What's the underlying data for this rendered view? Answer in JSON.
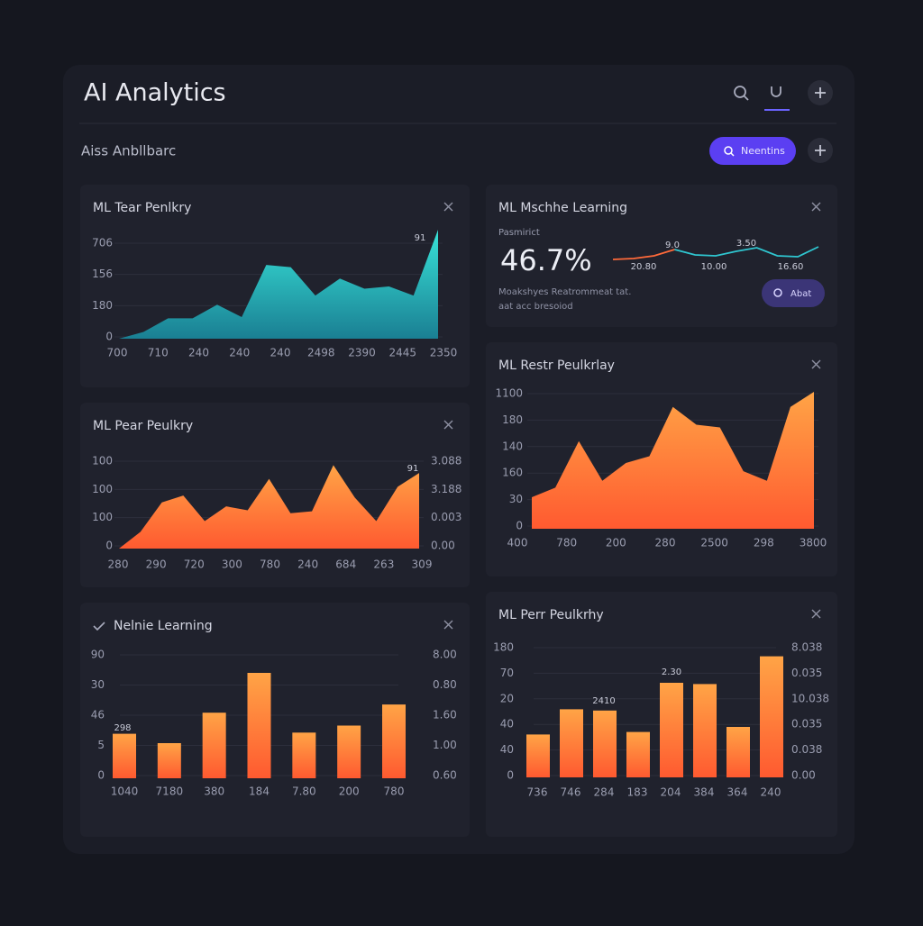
{
  "header": {
    "title": "AI Analytics",
    "subtitle": "Aiss Anbllbarc",
    "button": "Neentins"
  },
  "panels": [
    {
      "title": "ML Tear Penlkry",
      "chart": {
        "type": "area",
        "colors": [
          "#38e3d8",
          "#1a7f93"
        ],
        "ylim": [
          0,
          100
        ],
        "values": [
          0,
          6,
          18,
          18,
          30,
          19,
          65,
          63,
          38,
          53,
          44,
          46,
          38,
          96
        ],
        "ylabels": [
          "706",
          "156",
          "180",
          "0"
        ],
        "xlabels": [
          "700",
          "710",
          "240",
          "240",
          "240",
          "2498",
          "2390",
          "2445",
          "2350"
        ],
        "annotations": [
          "91"
        ]
      }
    },
    {
      "title": "ML Mschhe Learning",
      "label": "Pasmirict",
      "metric": "46.7%",
      "note": [
        "Moakshyes Reatrommeat tat.",
        "aat acc bresoiod"
      ],
      "button": "Abat",
      "chart": {
        "type": "sparkline",
        "ylim": [
          0,
          20
        ],
        "series": [
          {
            "color": "#ff6a3a",
            "values": [
              2,
              3,
              6,
              13,
              null,
              null,
              null,
              null,
              null,
              null,
              null
            ]
          },
          {
            "color": "#2fc6d0",
            "values": [
              null,
              null,
              null,
              13,
              7,
              6,
              11,
              15,
              6,
              5,
              16
            ]
          }
        ],
        "annotations": [
          "9.0",
          "3.50",
          "20.80",
          "10.00",
          "16.60"
        ]
      }
    },
    {
      "title": "ML Pear Peulkry",
      "chart": {
        "type": "area",
        "colors": [
          "#ffa446",
          "#ff5a30"
        ],
        "ylim": [
          0,
          100
        ],
        "values": [
          0,
          17,
          47,
          54,
          28,
          43,
          39,
          71,
          36,
          38,
          85,
          52,
          28,
          63,
          77
        ],
        "ylabels": [
          "100",
          "100",
          "100",
          "0"
        ],
        "y2labels": [
          "3.088",
          "3.188",
          "0.003",
          "0.00"
        ],
        "xlabels": [
          "280",
          "290",
          "720",
          "300",
          "780",
          "240",
          "684",
          "263",
          "309"
        ],
        "annotations": [
          "91"
        ]
      }
    },
    {
      "title": "ML Restr Peulkrlay",
      "chart": {
        "type": "area",
        "colors": [
          "#ffa446",
          "#ff5a30"
        ],
        "ylim": [
          0,
          100
        ],
        "values": [
          23,
          30,
          64,
          35,
          48,
          53,
          89,
          76,
          74,
          42,
          35,
          89,
          100
        ],
        "ylabels": [
          "1100",
          "180",
          "140",
          "160",
          "30",
          "0"
        ],
        "xlabels": [
          "400",
          "780",
          "200",
          "280",
          "2500",
          "298",
          "3800"
        ],
        "annotations": []
      }
    },
    {
      "title": "Nelnie Learning",
      "chart": {
        "type": "bar",
        "colors": [
          "#ffa446",
          "#ff5a30"
        ],
        "ylim": [
          0,
          100
        ],
        "values": [
          38,
          30,
          56,
          90,
          39,
          45,
          63
        ],
        "ylabels": [
          "90",
          "30",
          "46",
          "5",
          "0"
        ],
        "y2labels": [
          "8.00",
          "0.80",
          "1.60",
          "1.00",
          "0.60"
        ],
        "xlabels": [
          "1040",
          "7180",
          "380",
          "184",
          "7.80",
          "200",
          "780"
        ],
        "annotations": [
          "298"
        ]
      }
    },
    {
      "title": "ML Perr Peulkrhy",
      "chart": {
        "type": "bar",
        "colors": [
          "#ffa446",
          "#ff5a30"
        ],
        "ylim": [
          0,
          100
        ],
        "values": [
          34,
          54,
          53,
          36,
          75,
          74,
          40,
          96
        ],
        "ylabels": [
          "180",
          "70",
          "20",
          "40",
          "40",
          "0"
        ],
        "y2labels": [
          "8.038",
          "0.035",
          "10.038",
          "0.035",
          "0.038",
          "0.00"
        ],
        "xlabels": [
          "736",
          "746",
          "284",
          "183",
          "204",
          "384",
          "364",
          "240"
        ],
        "annotations": [
          "2410",
          "2.30"
        ]
      }
    }
  ]
}
